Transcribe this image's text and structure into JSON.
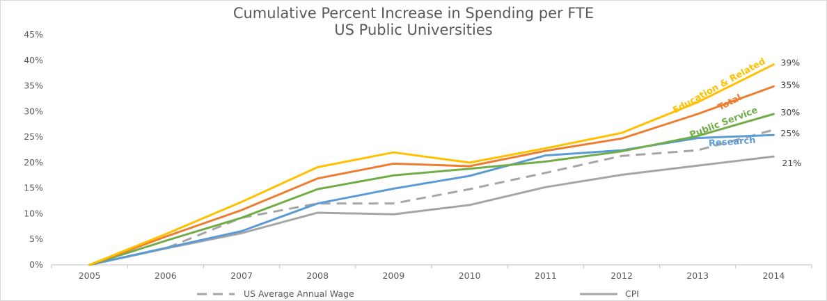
{
  "chart_data": {
    "type": "line",
    "title": "Cumulative Percent Increase in Spending per FTE",
    "subtitle": "US Public Universities",
    "xlabel": "",
    "ylabel": "",
    "ylim": [
      0,
      45
    ],
    "y_ticks": [
      "0%",
      "5%",
      "10%",
      "15%",
      "20%",
      "25%",
      "30%",
      "35%",
      "40%",
      "45%"
    ],
    "categories": [
      "2005",
      "2006",
      "2007",
      "2008",
      "2009",
      "2010",
      "2011",
      "2012",
      "2013",
      "2014"
    ],
    "grid": false,
    "legend_position": "bottom",
    "series": [
      {
        "key": "edu",
        "name": "Education & Related",
        "color": "#FFC000",
        "dash": "",
        "end_label": "39%",
        "values": [
          0,
          6,
          12.3,
          19.1,
          22,
          20,
          22.8,
          25.8,
          31.8,
          39.2
        ]
      },
      {
        "key": "total",
        "name": "Total",
        "color": "#ED7D31",
        "dash": "",
        "end_label": "35%",
        "values": [
          0,
          5.5,
          10.7,
          16.9,
          19.8,
          19.3,
          22.3,
          24.7,
          29.5,
          34.9
        ]
      },
      {
        "key": "pubsvc",
        "name": "Public Service",
        "color": "#70AD47",
        "dash": "",
        "end_label": "30%",
        "values": [
          0,
          4.7,
          9.2,
          14.8,
          17.5,
          18.8,
          20.2,
          22.2,
          25.2,
          29.5
        ]
      },
      {
        "key": "research",
        "name": "Research",
        "color": "#5B9BD5",
        "dash": "",
        "end_label": "25%",
        "values": [
          0,
          3.3,
          6.6,
          12,
          14.9,
          17.4,
          21.4,
          22.4,
          24.8,
          25.4
        ]
      },
      {
        "key": "wage",
        "name": "US Average Annual Wage",
        "color": "#A5A5A5",
        "dash": "14 9",
        "end_label": "",
        "values": [
          0,
          3.2,
          9.2,
          12,
          12,
          14.8,
          18,
          21.3,
          22.4,
          26.4
        ]
      },
      {
        "key": "cpi",
        "name": "CPI",
        "color": "#A5A5A5",
        "dash": "",
        "end_label": "21%",
        "values": [
          0,
          3.2,
          6.2,
          10.2,
          9.9,
          11.7,
          15.2,
          17.6,
          19.4,
          21.2
        ]
      }
    ],
    "legend": [
      {
        "name": "US Average Annual Wage",
        "color": "#A5A5A5",
        "dash": "14 9"
      },
      {
        "name": "CPI",
        "color": "#A5A5A5",
        "dash": ""
      }
    ]
  }
}
